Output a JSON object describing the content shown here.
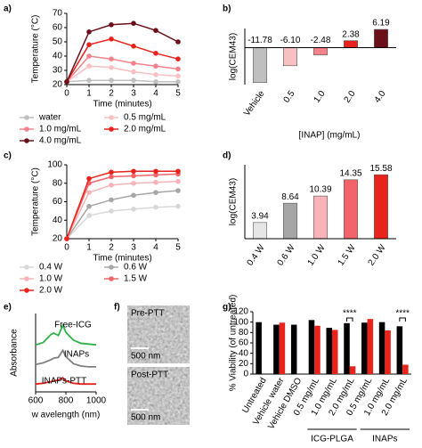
{
  "chart_data": [
    {
      "type": "line",
      "label": "a)",
      "xlabel": "Time (minutes)",
      "ylabel": "Temperature (°C)",
      "x": [
        0,
        1,
        2,
        3,
        4,
        5
      ],
      "xlim": [
        0,
        5
      ],
      "xticks": [
        0,
        1,
        2,
        3,
        4,
        5
      ],
      "ylim": [
        20,
        70
      ],
      "yticks": [
        20,
        30,
        40,
        50,
        60,
        70
      ],
      "markers": true,
      "legend": "below",
      "series": [
        {
          "name": "water",
          "color": "#c0c0c0",
          "values": [
            22,
            23,
            23,
            23,
            22,
            22
          ]
        },
        {
          "name": "0.5 mg/mL",
          "color": "#f9c0c4",
          "values": [
            22,
            33,
            32,
            29,
            27,
            26
          ]
        },
        {
          "name": "1.0 mg/mL",
          "color": "#f4828a",
          "values": [
            22,
            40,
            38,
            35,
            33,
            31
          ]
        },
        {
          "name": "2.0 mg/mL",
          "color": "#e8231c",
          "values": [
            22,
            48,
            52,
            47,
            42,
            38
          ]
        },
        {
          "name": "4.0 mg/mL",
          "color": "#6b0f1a",
          "values": [
            22,
            57,
            62,
            63,
            58,
            50
          ]
        }
      ]
    },
    {
      "type": "bar",
      "label": "b)",
      "xlabel": "[INAP] (mg/mL)",
      "ylabel": "log(CEM43)",
      "categories": [
        "Vehicle",
        "0.5",
        "1.0",
        "2.0",
        "4.0"
      ],
      "values": [
        -11.78,
        -6.1,
        -2.48,
        2.38,
        6.19
      ],
      "value_labels": [
        "-11.78",
        "-6.10",
        "-2.48",
        "2.38",
        "6.19"
      ],
      "colors": [
        "#bfbfbf",
        "#f9c0c4",
        "#f4828a",
        "#e8231c",
        "#6b0f1a"
      ],
      "ylim": [
        -12.5,
        6.5
      ]
    },
    {
      "type": "line",
      "label": "c)",
      "xlabel": "Time (minutes)",
      "ylabel": "Temperature (°C)",
      "x": [
        0,
        1,
        2,
        3,
        4,
        5
      ],
      "xlim": [
        0,
        5
      ],
      "xticks": [
        0,
        1,
        2,
        3,
        4,
        5
      ],
      "ylim": [
        20,
        100
      ],
      "yticks": [
        20,
        40,
        60,
        80,
        100
      ],
      "markers": true,
      "legend": "below",
      "series": [
        {
          "name": "0.4 W",
          "color": "#d8d8d8",
          "values": [
            20,
            45,
            50,
            52,
            54,
            55
          ]
        },
        {
          "name": "0.6 W",
          "color": "#a6a6a6",
          "values": [
            20,
            55,
            62,
            67,
            70,
            72
          ]
        },
        {
          "name": "1.0 W",
          "color": "#f7b3b8",
          "values": [
            20,
            70,
            78,
            80,
            81,
            82
          ]
        },
        {
          "name": "1.5 W",
          "color": "#f2646a",
          "values": [
            20,
            80,
            87,
            88,
            89,
            90
          ]
        },
        {
          "name": "2.0 W",
          "color": "#e8231c",
          "values": [
            20,
            85,
            92,
            93,
            93,
            93
          ]
        }
      ]
    },
    {
      "type": "bar",
      "label": "d)",
      "ylabel": "log(CEM43)",
      "categories": [
        "0.4 W",
        "0.6 W",
        "1.0 W",
        "1.5 W",
        "2.0 W"
      ],
      "values": [
        3.94,
        8.64,
        10.39,
        14.35,
        15.58
      ],
      "colors": [
        "#e6e6e6",
        "#a6a6a6",
        "#f7b3b8",
        "#f2646a",
        "#e8231c"
      ],
      "ylim": [
        0,
        18
      ]
    },
    {
      "type": "line",
      "label": "e)",
      "xlabel": "w avelength (nm)",
      "ylabel": "Absorbance",
      "x": [
        600,
        650,
        700,
        720,
        750,
        780,
        800,
        850,
        900,
        950,
        1000
      ],
      "xlim": [
        600,
        1000
      ],
      "xticks": [
        600,
        800,
        1000
      ],
      "ylim": [
        0,
        10
      ],
      "markers": false,
      "legend": "inline",
      "series": [
        {
          "name": "Free-ICG",
          "color": "#2db34a",
          "values": [
            6.0,
            6.3,
            7.3,
            7.5,
            7.2,
            8.5,
            7.6,
            6.6,
            6.2,
            6.1,
            6.0
          ]
        },
        {
          "name": "INAPs",
          "color": "#808080",
          "values": [
            3.5,
            3.7,
            4.1,
            4.3,
            4.4,
            5.3,
            4.5,
            3.6,
            3.3,
            3.2,
            3.2
          ]
        },
        {
          "name": "INAPs-PTT",
          "color": "#e8231c",
          "values": [
            1.0,
            1.1,
            1.3,
            1.4,
            1.5,
            1.8,
            1.4,
            1.1,
            1.0,
            1.0,
            1.0
          ]
        }
      ]
    },
    {
      "type": "image",
      "label": "f)",
      "images": [
        {
          "title": "Pre-PTT",
          "scale": "500 nm"
        },
        {
          "title": "Post-PTT",
          "scale": "500 nm"
        }
      ]
    },
    {
      "type": "grouped_bar",
      "label": "g)",
      "ylabel": "% Viability (of untreated)",
      "categories": [
        "Untreated",
        "Vehicle water",
        "Vehicle DMSO",
        "0.5 mg/mL",
        "1.0 mg/mL",
        "2.0 mg/mL",
        "0.5 mg/mL",
        "1.0 mg/mL",
        "2.0 mg/mL"
      ],
      "groups": [
        "ICG-PLGA",
        "INAPs"
      ],
      "series": [
        {
          "color": "#000000",
          "values": [
            100,
            95,
            95,
            104,
            89,
            98,
            99,
            100,
            92
          ]
        },
        {
          "color": "#e8231c",
          "values": [
            null,
            99,
            null,
            93,
            85,
            15,
            106,
            84,
            18
          ]
        }
      ],
      "annotations": [
        "****",
        "****"
      ],
      "ylim": [
        0,
        120
      ],
      "yticks": [
        0,
        20,
        40,
        60,
        80,
        100,
        120
      ]
    }
  ]
}
